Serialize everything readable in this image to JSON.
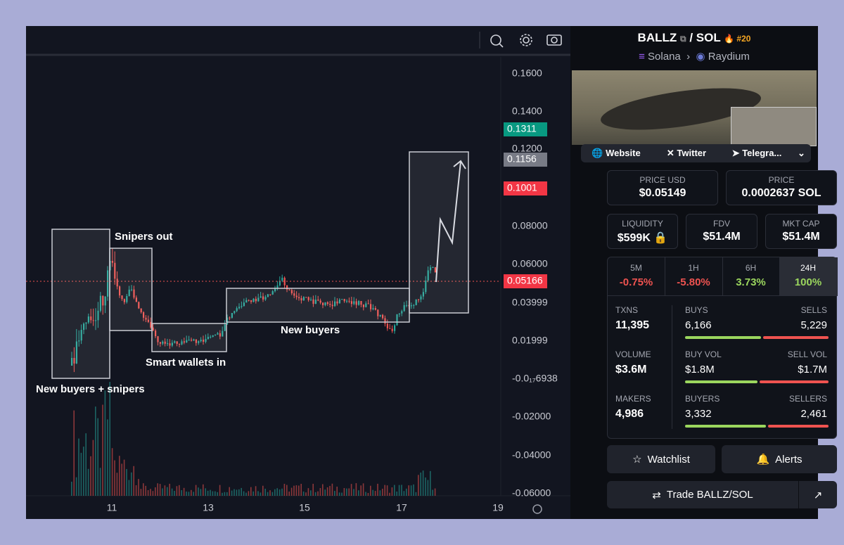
{
  "chart": {
    "price_axis": [
      "0.1600",
      "0.1400",
      "0.1200",
      "0.08000",
      "0.06000",
      "0.03999",
      "0.01999",
      "-0.0₁₇6938",
      "-0.02000",
      "-0.04000",
      "-0.06000"
    ],
    "time_axis": [
      "11",
      "13",
      "15",
      "17",
      "19"
    ],
    "price_badges": [
      "0.1311",
      "0.1156",
      "0.1001",
      "0.05166"
    ],
    "annotations": [
      "Snipers out",
      "Smart wallets in",
      "New buyers",
      "New buyers + snipers"
    ]
  },
  "pair": {
    "base": "BALLZ",
    "quote": "/ SOL",
    "rank": "#20",
    "chain": "Solana",
    "dex": "Raydium"
  },
  "links": [
    "Website",
    "Twitter",
    "Telegra..."
  ],
  "prices": [
    {
      "label": "PRICE USD",
      "value": "$0.05149"
    },
    {
      "label": "PRICE",
      "value": "0.0002637 SOL"
    }
  ],
  "metrics": [
    {
      "label": "LIQUIDITY",
      "value": "$599K"
    },
    {
      "label": "FDV",
      "value": "$51.4M"
    },
    {
      "label": "MKT CAP",
      "value": "$51.4M"
    }
  ],
  "changes": [
    {
      "period": "5M",
      "value": "-0.75%"
    },
    {
      "period": "1H",
      "value": "-5.80%"
    },
    {
      "period": "6H",
      "value": "3.73%"
    },
    {
      "period": "24H",
      "value": "100%"
    }
  ],
  "stats": [
    {
      "total_label": "TXNS",
      "total": "11,395",
      "left_label": "BUYS",
      "left": "6,166",
      "right_label": "SELLS",
      "right": "5,229"
    },
    {
      "total_label": "VOLUME",
      "total": "$3.6M",
      "left_label": "BUY VOL",
      "left": "$1.8M",
      "right_label": "SELL VOL",
      "right": "$1.7M"
    },
    {
      "total_label": "MAKERS",
      "total": "4,986",
      "left_label": "BUYERS",
      "left": "3,332",
      "right_label": "SELLERS",
      "right": "2,461"
    }
  ],
  "actions": [
    "Watchlist",
    "Alerts",
    "Trade BALLZ/SOL"
  ]
}
